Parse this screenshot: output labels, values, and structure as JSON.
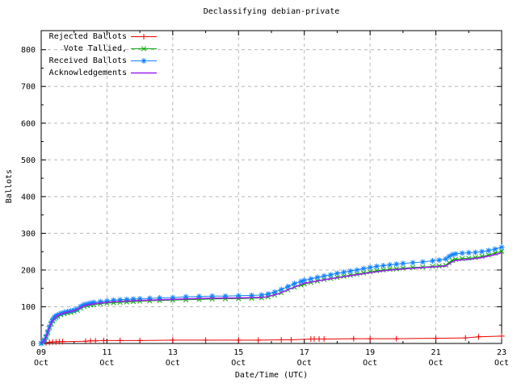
{
  "chart_data": {
    "type": "line",
    "title": "Declassifying debian-private",
    "xlabel": "Date/Time (UTC)",
    "ylabel": "Ballots",
    "xlim": [
      9,
      23
    ],
    "ylim": [
      0,
      852
    ],
    "grid": true,
    "legend_position": "top-left",
    "axis_color": "#000000",
    "grid_color": "#b8b8b8",
    "x_ticks": [
      {
        "value": 9,
        "day": "09",
        "month": "Oct"
      },
      {
        "value": 11,
        "day": "11",
        "month": "Oct"
      },
      {
        "value": 13,
        "day": "13",
        "month": "Oct"
      },
      {
        "value": 15,
        "day": "15",
        "month": "Oct"
      },
      {
        "value": 17,
        "day": "17",
        "month": "Oct"
      },
      {
        "value": 19,
        "day": "19",
        "month": "Oct"
      },
      {
        "value": 21,
        "day": "21",
        "month": "Oct"
      },
      {
        "value": 23,
        "day": "23",
        "month": "Oct"
      }
    ],
    "x_minor_ticks": [
      10,
      12,
      14,
      16,
      18,
      20,
      22
    ],
    "y_ticks": [
      0,
      100,
      200,
      300,
      400,
      500,
      600,
      700,
      800
    ],
    "y_minor_ticks": [
      50,
      150,
      250,
      350,
      450,
      550,
      650,
      750
    ],
    "series": [
      {
        "name": "Rejected Ballots",
        "color": "#ee0000",
        "marker": "plus",
        "points": [
          [
            9,
            0
          ],
          [
            9.15,
            2
          ],
          [
            9.25,
            3
          ],
          [
            9.35,
            4
          ],
          [
            9.45,
            4
          ],
          [
            9.55,
            5
          ],
          [
            9.65,
            5
          ],
          [
            10.35,
            6
          ],
          [
            10.5,
            7
          ],
          [
            10.65,
            7
          ],
          [
            10.9,
            8
          ],
          [
            11.4,
            8
          ],
          [
            12,
            8
          ],
          [
            13,
            9
          ],
          [
            14,
            9
          ],
          [
            15,
            9
          ],
          [
            15.6,
            9
          ],
          [
            16.3,
            10
          ],
          [
            16.6,
            10
          ],
          [
            17.2,
            12
          ],
          [
            17.3,
            12
          ],
          [
            17.45,
            12
          ],
          [
            17.6,
            12
          ],
          [
            18.5,
            13
          ],
          [
            19,
            13
          ],
          [
            19.8,
            13
          ],
          [
            21,
            14
          ],
          [
            21.9,
            15
          ],
          [
            22.3,
            18
          ],
          [
            23,
            20
          ]
        ]
      },
      {
        "name": "Vote Tallied,",
        "color": "#00a800",
        "marker": "cross",
        "points": [
          [
            9,
            0
          ],
          [
            9.05,
            3
          ],
          [
            9.1,
            8
          ],
          [
            9.15,
            17
          ],
          [
            9.2,
            29
          ],
          [
            9.25,
            42
          ],
          [
            9.3,
            53
          ],
          [
            9.35,
            61
          ],
          [
            9.4,
            67
          ],
          [
            9.45,
            71
          ],
          [
            9.5,
            74
          ],
          [
            9.6,
            78
          ],
          [
            9.7,
            81
          ],
          [
            9.8,
            83
          ],
          [
            9.9,
            85
          ],
          [
            10,
            87
          ],
          [
            10.1,
            90
          ],
          [
            10.2,
            96
          ],
          [
            10.3,
            101
          ],
          [
            10.4,
            103
          ],
          [
            10.5,
            105
          ],
          [
            10.6,
            106
          ],
          [
            10.8,
            108
          ],
          [
            11,
            110
          ],
          [
            11.2,
            111
          ],
          [
            11.4,
            112
          ],
          [
            11.6,
            113
          ],
          [
            11.8,
            114
          ],
          [
            12,
            115
          ],
          [
            12.3,
            116
          ],
          [
            12.6,
            117
          ],
          [
            13,
            118
          ],
          [
            13.4,
            119
          ],
          [
            13.8,
            120
          ],
          [
            14.2,
            121
          ],
          [
            14.6,
            122
          ],
          [
            15,
            122
          ],
          [
            15.4,
            123
          ],
          [
            15.7,
            124
          ],
          [
            15.9,
            127
          ],
          [
            16.1,
            132
          ],
          [
            16.3,
            138
          ],
          [
            16.5,
            146
          ],
          [
            16.7,
            153
          ],
          [
            16.9,
            159
          ],
          [
            17,
            162
          ],
          [
            17.2,
            166
          ],
          [
            17.4,
            170
          ],
          [
            17.6,
            174
          ],
          [
            17.8,
            177
          ],
          [
            18,
            180
          ],
          [
            18.2,
            183
          ],
          [
            18.4,
            186
          ],
          [
            18.6,
            189
          ],
          [
            18.8,
            192
          ],
          [
            19,
            195
          ],
          [
            19.2,
            198
          ],
          [
            19.4,
            200
          ],
          [
            19.6,
            202
          ],
          [
            19.8,
            203
          ],
          [
            20,
            205
          ],
          [
            20.3,
            207
          ],
          [
            20.6,
            208
          ],
          [
            20.9,
            210
          ],
          [
            21.1,
            211
          ],
          [
            21.3,
            213
          ],
          [
            21.4,
            220
          ],
          [
            21.5,
            226
          ],
          [
            21.6,
            229
          ],
          [
            21.8,
            231
          ],
          [
            22,
            232
          ],
          [
            22.2,
            234
          ],
          [
            22.4,
            237
          ],
          [
            22.6,
            241
          ],
          [
            22.8,
            246
          ],
          [
            23,
            251
          ]
        ]
      },
      {
        "name": "Received Ballots",
        "color": "#1080ff",
        "marker": "star",
        "points": [
          [
            9,
            0
          ],
          [
            9.05,
            4
          ],
          [
            9.1,
            10
          ],
          [
            9.15,
            20
          ],
          [
            9.2,
            33
          ],
          [
            9.25,
            46
          ],
          [
            9.3,
            57
          ],
          [
            9.35,
            65
          ],
          [
            9.4,
            71
          ],
          [
            9.45,
            75
          ],
          [
            9.5,
            78
          ],
          [
            9.6,
            82
          ],
          [
            9.7,
            85
          ],
          [
            9.8,
            87
          ],
          [
            9.9,
            89
          ],
          [
            10,
            91
          ],
          [
            10.1,
            94
          ],
          [
            10.2,
            101
          ],
          [
            10.3,
            106
          ],
          [
            10.4,
            108
          ],
          [
            10.5,
            110
          ],
          [
            10.6,
            112
          ],
          [
            10.8,
            114
          ],
          [
            11,
            116
          ],
          [
            11.2,
            118
          ],
          [
            11.4,
            119
          ],
          [
            11.6,
            120
          ],
          [
            11.8,
            121
          ],
          [
            12,
            122
          ],
          [
            12.3,
            123
          ],
          [
            12.6,
            124
          ],
          [
            13,
            125
          ],
          [
            13.4,
            127
          ],
          [
            13.8,
            128
          ],
          [
            14.2,
            129
          ],
          [
            14.6,
            129
          ],
          [
            15,
            130
          ],
          [
            15.4,
            131
          ],
          [
            15.7,
            132
          ],
          [
            15.9,
            135
          ],
          [
            16.1,
            140
          ],
          [
            16.3,
            147
          ],
          [
            16.5,
            155
          ],
          [
            16.7,
            163
          ],
          [
            16.9,
            169
          ],
          [
            17,
            172
          ],
          [
            17.2,
            176
          ],
          [
            17.4,
            180
          ],
          [
            17.6,
            184
          ],
          [
            17.8,
            187
          ],
          [
            18,
            191
          ],
          [
            18.2,
            194
          ],
          [
            18.4,
            197
          ],
          [
            18.6,
            200
          ],
          [
            18.8,
            204
          ],
          [
            19,
            207
          ],
          [
            19.2,
            210
          ],
          [
            19.4,
            212
          ],
          [
            19.6,
            214
          ],
          [
            19.8,
            216
          ],
          [
            20,
            218
          ],
          [
            20.3,
            220
          ],
          [
            20.6,
            222
          ],
          [
            20.9,
            225
          ],
          [
            21.1,
            227
          ],
          [
            21.3,
            230
          ],
          [
            21.4,
            237
          ],
          [
            21.5,
            242
          ],
          [
            21.6,
            244
          ],
          [
            21.8,
            246
          ],
          [
            22,
            247
          ],
          [
            22.2,
            248
          ],
          [
            22.4,
            250
          ],
          [
            22.6,
            253
          ],
          [
            22.8,
            257
          ],
          [
            23,
            262
          ]
        ]
      },
      {
        "name": "Acknowledgements",
        "color": "#a020f0",
        "marker": "none",
        "points": [
          [
            9,
            0
          ],
          [
            9.1,
            9
          ],
          [
            9.2,
            31
          ],
          [
            9.3,
            55
          ],
          [
            9.4,
            69
          ],
          [
            9.5,
            76
          ],
          [
            9.7,
            83
          ],
          [
            10,
            89
          ],
          [
            10.2,
            98
          ],
          [
            10.4,
            105
          ],
          [
            10.7,
            109
          ],
          [
            11,
            112
          ],
          [
            11.5,
            115
          ],
          [
            12,
            117
          ],
          [
            13,
            120
          ],
          [
            14,
            123
          ],
          [
            15,
            124
          ],
          [
            15.8,
            126
          ],
          [
            16.2,
            135
          ],
          [
            16.6,
            150
          ],
          [
            17,
            164
          ],
          [
            17.5,
            172
          ],
          [
            18,
            179
          ],
          [
            18.5,
            186
          ],
          [
            19,
            193
          ],
          [
            19.5,
            199
          ],
          [
            20,
            203
          ],
          [
            20.5,
            206
          ],
          [
            21,
            209
          ],
          [
            21.3,
            211
          ],
          [
            21.45,
            220
          ],
          [
            21.6,
            226
          ],
          [
            22,
            229
          ],
          [
            22.4,
            234
          ],
          [
            22.8,
            242
          ],
          [
            23,
            247
          ]
        ]
      }
    ]
  }
}
